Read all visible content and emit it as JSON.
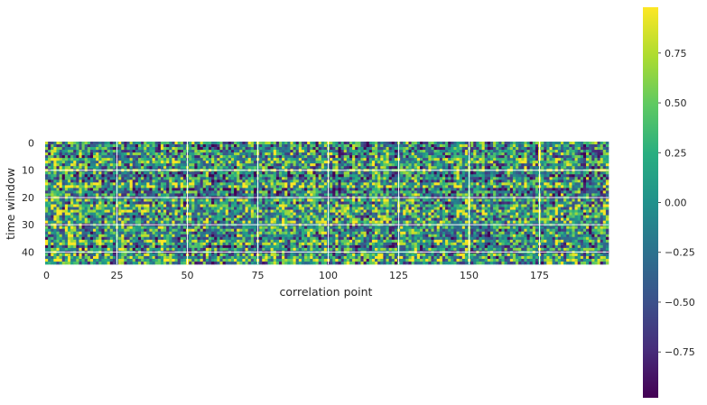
{
  "chart_data": {
    "type": "heatmap",
    "title": "",
    "xlabel": "correlation point",
    "ylabel": "time window",
    "n_cols": 200,
    "n_rows": 45,
    "value_range": [
      -1,
      1
    ],
    "x_ticks": [
      0,
      25,
      50,
      75,
      100,
      125,
      150,
      175
    ],
    "y_ticks": [
      0,
      10,
      20,
      30,
      40
    ],
    "grid": true,
    "colormap": "viridis",
    "colorbar": {
      "ticks": [
        0.75,
        0.5,
        0.25,
        0.0,
        -0.25,
        -0.5,
        -0.75
      ],
      "tick_labels": [
        "0.75",
        "0.50",
        "0.25",
        "0.00",
        "−0.25",
        "−0.50",
        "−0.75"
      ],
      "range": [
        -0.98,
        0.98
      ]
    },
    "values_note": "random correlation values in [-1, 1]"
  }
}
